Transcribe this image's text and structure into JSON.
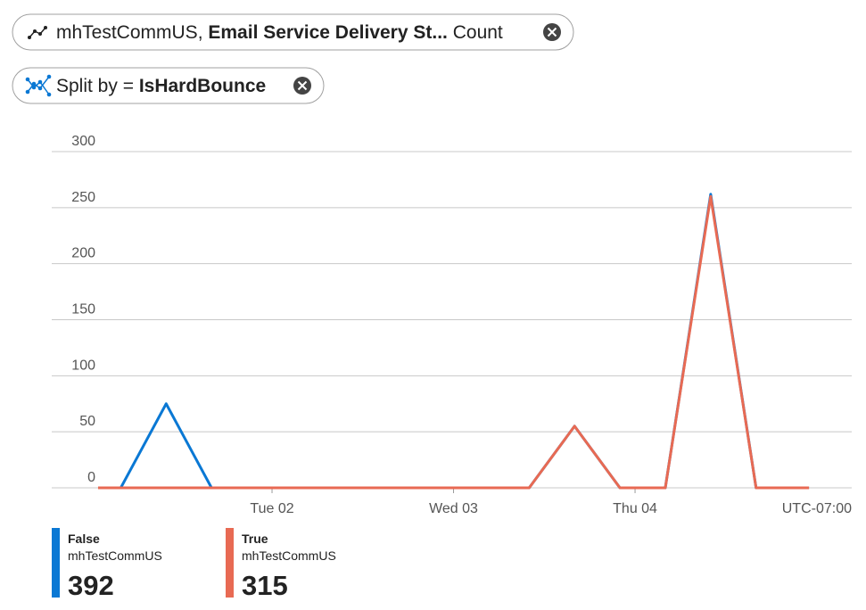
{
  "filters": [
    {
      "resource": "mhTestCommUS,",
      "metric": "Email Service Delivery St...",
      "aggregation": "Count"
    },
    {
      "prefix": "Split by =",
      "dimension": "IsHardBounce"
    }
  ],
  "chart_data": {
    "type": "line",
    "xlim": [
      -5.13,
      100.65
    ],
    "xticks": [
      {
        "value": 24,
        "label": "Tue 02"
      },
      {
        "value": 48,
        "label": "Wed 03"
      },
      {
        "value": 72,
        "label": "Thu 04"
      }
    ],
    "timezone": "UTC-07:00",
    "ylim": [
      0,
      300
    ],
    "yticks": [
      0,
      50,
      100,
      150,
      200,
      250,
      300
    ],
    "grid": true,
    "series": [
      {
        "name": "False",
        "resource": "mhTestCommUS",
        "total": 392,
        "color": "#0a78d4",
        "x": [
          4,
          10,
          16,
          22,
          28,
          34,
          40,
          46,
          52,
          58,
          64,
          70,
          76,
          82,
          88,
          95
        ],
        "values": [
          0,
          75,
          0,
          0,
          0,
          0,
          0,
          0,
          0,
          0,
          55,
          0,
          0,
          262,
          0,
          0
        ]
      },
      {
        "name": "True",
        "resource": "mhTestCommUS",
        "total": 315,
        "color": "#e86a53",
        "x": [
          1,
          58,
          64,
          70,
          76,
          82,
          88,
          95
        ],
        "values": [
          0,
          0,
          55,
          0,
          0,
          260,
          0,
          0
        ]
      }
    ]
  }
}
